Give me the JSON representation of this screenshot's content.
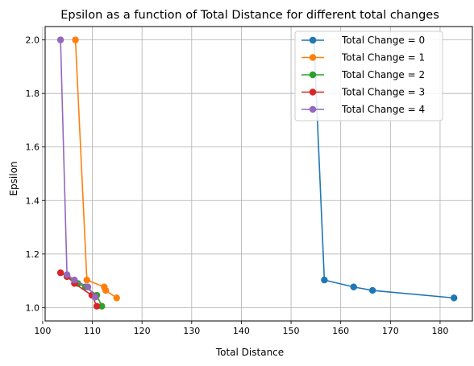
{
  "chart_data": {
    "type": "line",
    "title": "Epsilon as a function of Total Distance for different total changes",
    "xlabel": "Total Distance",
    "ylabel": "Epsilon",
    "xlim": [
      100.5,
      186.5
    ],
    "ylim": [
      0.95,
      2.05
    ],
    "xticks": [
      100,
      110,
      120,
      130,
      140,
      150,
      160,
      170,
      180
    ],
    "yticks": [
      1.0,
      1.2,
      1.4,
      1.6,
      1.8,
      2.0
    ],
    "grid": true,
    "legend_position": "top-right",
    "series": [
      {
        "name": "Total Change = 0",
        "color": "#1f77b4",
        "points": [
          [
            154.6,
            2.0
          ],
          [
            156.7,
            1.103
          ],
          [
            162.6,
            1.077
          ],
          [
            166.4,
            1.064
          ],
          [
            182.8,
            1.036
          ]
        ]
      },
      {
        "name": "Total Change = 1",
        "color": "#ff7f0e",
        "points": [
          [
            106.6,
            2.0
          ],
          [
            108.9,
            1.103
          ],
          [
            112.4,
            1.077
          ],
          [
            112.7,
            1.064
          ],
          [
            114.9,
            1.036
          ]
        ]
      },
      {
        "name": "Total Change = 2",
        "color": "#2ca02c",
        "points": [
          [
            104.9,
            1.116
          ],
          [
            107.1,
            1.09
          ],
          [
            108.6,
            1.077
          ],
          [
            110.9,
            1.046
          ],
          [
            111.9,
            1.005
          ]
        ]
      },
      {
        "name": "Total Change = 3",
        "color": "#d62728",
        "points": [
          [
            103.6,
            1.13
          ],
          [
            104.9,
            1.116
          ],
          [
            106.4,
            1.09
          ],
          [
            109.9,
            1.046
          ],
          [
            110.9,
            1.005
          ]
        ]
      },
      {
        "name": "Total Change = 4",
        "color": "#9467bd",
        "points": [
          [
            103.6,
            2.0
          ],
          [
            104.9,
            1.123
          ],
          [
            106.4,
            1.103
          ],
          [
            109.1,
            1.077
          ],
          [
            110.6,
            1.039
          ]
        ]
      }
    ]
  }
}
